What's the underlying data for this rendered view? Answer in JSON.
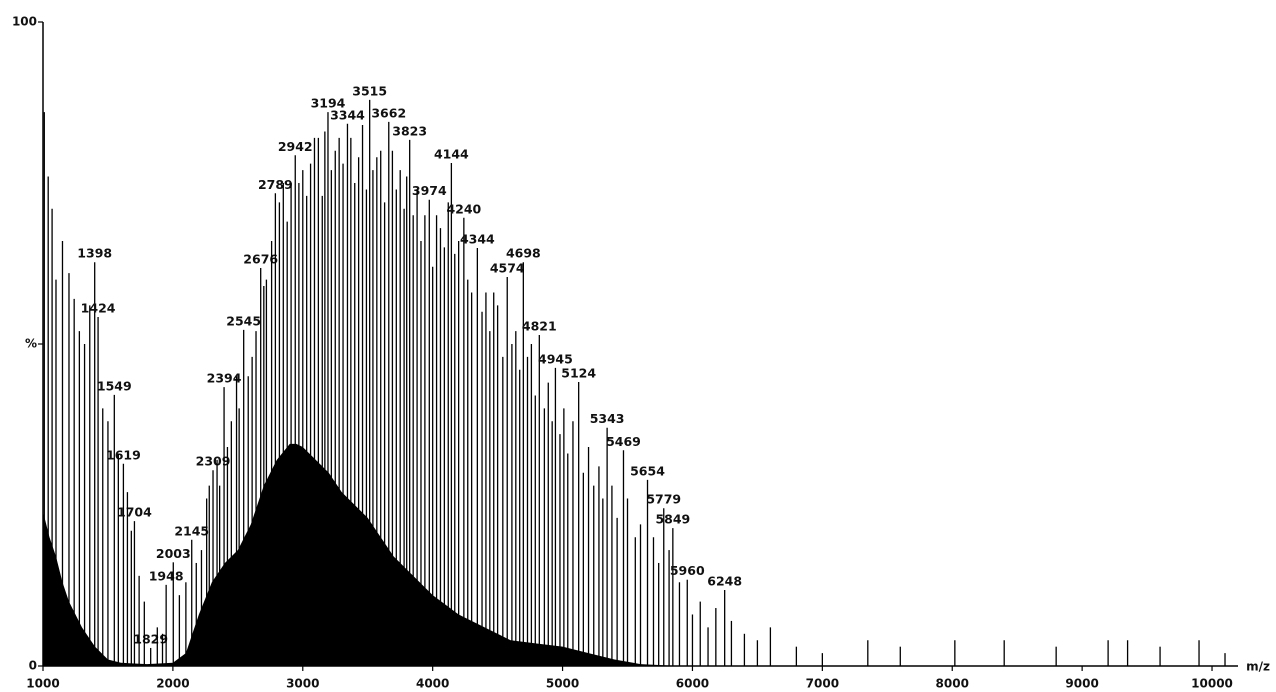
{
  "chart_data": {
    "type": "spectrum",
    "x_label": "m/z",
    "xlim": [
      1000,
      10200
    ],
    "xticks": [
      1000,
      2000,
      3000,
      4000,
      5000,
      6000,
      7000,
      8000,
      9000,
      10000
    ],
    "ylim": [
      0,
      100
    ],
    "yticks": [
      0,
      {
        "value": 50,
        "label": "%"
      },
      100
    ],
    "color": "#000000",
    "series": [
      {
        "labeled": true,
        "x": [
          1398,
          1424,
          1549,
          1619,
          1704,
          1829,
          1948,
          2003,
          2145,
          2309,
          2394,
          2545,
          2676,
          2789,
          2942,
          3194,
          3344,
          3515,
          3662,
          3823,
          3974,
          4144,
          4240,
          4344,
          4574,
          4698,
          4821,
          4945,
          5124,
          5343,
          5469,
          5654,
          5779,
          5849,
          5960,
          6248
        ],
        "values": [
          62.7,
          54.2,
          42.1,
          31.4,
          22.5,
          2.8,
          12.6,
          16.1,
          19.6,
          30.4,
          43.3,
          52.2,
          61.8,
          73.4,
          79.3,
          86.0,
          84.2,
          87.9,
          84.5,
          81.7,
          72.4,
          78.1,
          69.6,
          64.9,
          60.4,
          62.7,
          51.4,
          46.3,
          44.1,
          37.0,
          33.5,
          28.9,
          24.5,
          21.4,
          13.4,
          11.8
        ]
      },
      {
        "labeled": false,
        "x": [
          1010,
          1040,
          1070,
          1100,
          1150,
          1200,
          1240,
          1280,
          1320,
          1360,
          1460,
          1500,
          1580,
          1650,
          1680,
          1740,
          1780,
          1880,
          1920,
          2050,
          2100,
          2180,
          2220,
          2260,
          2280,
          2340,
          2360,
          2420,
          2450,
          2490,
          2510,
          2580,
          2610,
          2640,
          2700,
          2720,
          2760,
          2820,
          2850,
          2880,
          2910,
          2970,
          3000,
          3030,
          3060,
          3090,
          3120,
          3150,
          3170,
          3220,
          3250,
          3280,
          3310,
          3370,
          3400,
          3430,
          3460,
          3490,
          3540,
          3570,
          3600,
          3630,
          3690,
          3720,
          3750,
          3780,
          3800,
          3850,
          3880,
          3910,
          3940,
          4000,
          4030,
          4060,
          4090,
          4120,
          4170,
          4200,
          4270,
          4300,
          4380,
          4410,
          4440,
          4470,
          4500,
          4540,
          4610,
          4640,
          4670,
          4730,
          4760,
          4790,
          4860,
          4890,
          4920,
          4980,
          5010,
          5040,
          5080,
          5160,
          5200,
          5240,
          5280,
          5310,
          5380,
          5420,
          5500,
          5560,
          5600,
          5700,
          5740,
          5820,
          5900,
          6000,
          6060,
          6120,
          6180,
          6300,
          6400,
          6500,
          6600,
          6800,
          7000,
          7350,
          7600,
          8020,
          8400,
          8800,
          9200,
          9350,
          9600,
          9900,
          10100
        ],
        "values": [
          86,
          76,
          71,
          60,
          66,
          61,
          57,
          52,
          50,
          56,
          40,
          38,
          33,
          27,
          21,
          14,
          10,
          6,
          5,
          11,
          13,
          16,
          18,
          26,
          28,
          32,
          28,
          34,
          38,
          45,
          40,
          45,
          48,
          52,
          59,
          60,
          66,
          72,
          75,
          69,
          75,
          75,
          77,
          73,
          78,
          82,
          82,
          73,
          83,
          77,
          80,
          82,
          78,
          82,
          75,
          79,
          84,
          74,
          77,
          79,
          80,
          72,
          80,
          74,
          77,
          71,
          76,
          70,
          74,
          66,
          70,
          62,
          70,
          68,
          65,
          72,
          64,
          66,
          60,
          58,
          55,
          58,
          52,
          58,
          56,
          48,
          50,
          52,
          46,
          48,
          50,
          42,
          40,
          44,
          38,
          36,
          40,
          33,
          38,
          30,
          34,
          28,
          31,
          26,
          28,
          23,
          26,
          20,
          22,
          20,
          16,
          18,
          13,
          8,
          10,
          6,
          9,
          7,
          5,
          4,
          6,
          3,
          2,
          4,
          3,
          4,
          4,
          3,
          4,
          4,
          3,
          4,
          2
        ]
      }
    ],
    "envelope": {
      "x": [
        1000,
        1050,
        1100,
        1150,
        1200,
        1300,
        1400,
        1500,
        1600,
        1800,
        2000,
        2100,
        2200,
        2300,
        2400,
        2500,
        2600,
        2700,
        2800,
        2900,
        2950,
        3000,
        3100,
        3200,
        3300,
        3400,
        3500,
        3600,
        3700,
        3800,
        3900,
        4000,
        4200,
        4400,
        4600,
        4800,
        5000,
        5200,
        5400,
        5600,
        5800,
        6000,
        10200
      ],
      "values": [
        24,
        20,
        17,
        13,
        10,
        6,
        3,
        1,
        0.5,
        0.3,
        0.5,
        2,
        8,
        13,
        16,
        18,
        22,
        28,
        32,
        34.5,
        34.5,
        34,
        32,
        30,
        27,
        25,
        23,
        20,
        17,
        15,
        13,
        11,
        8,
        6,
        4,
        3.5,
        3,
        2,
        1,
        0.3,
        0.1,
        0,
        0
      ]
    }
  }
}
